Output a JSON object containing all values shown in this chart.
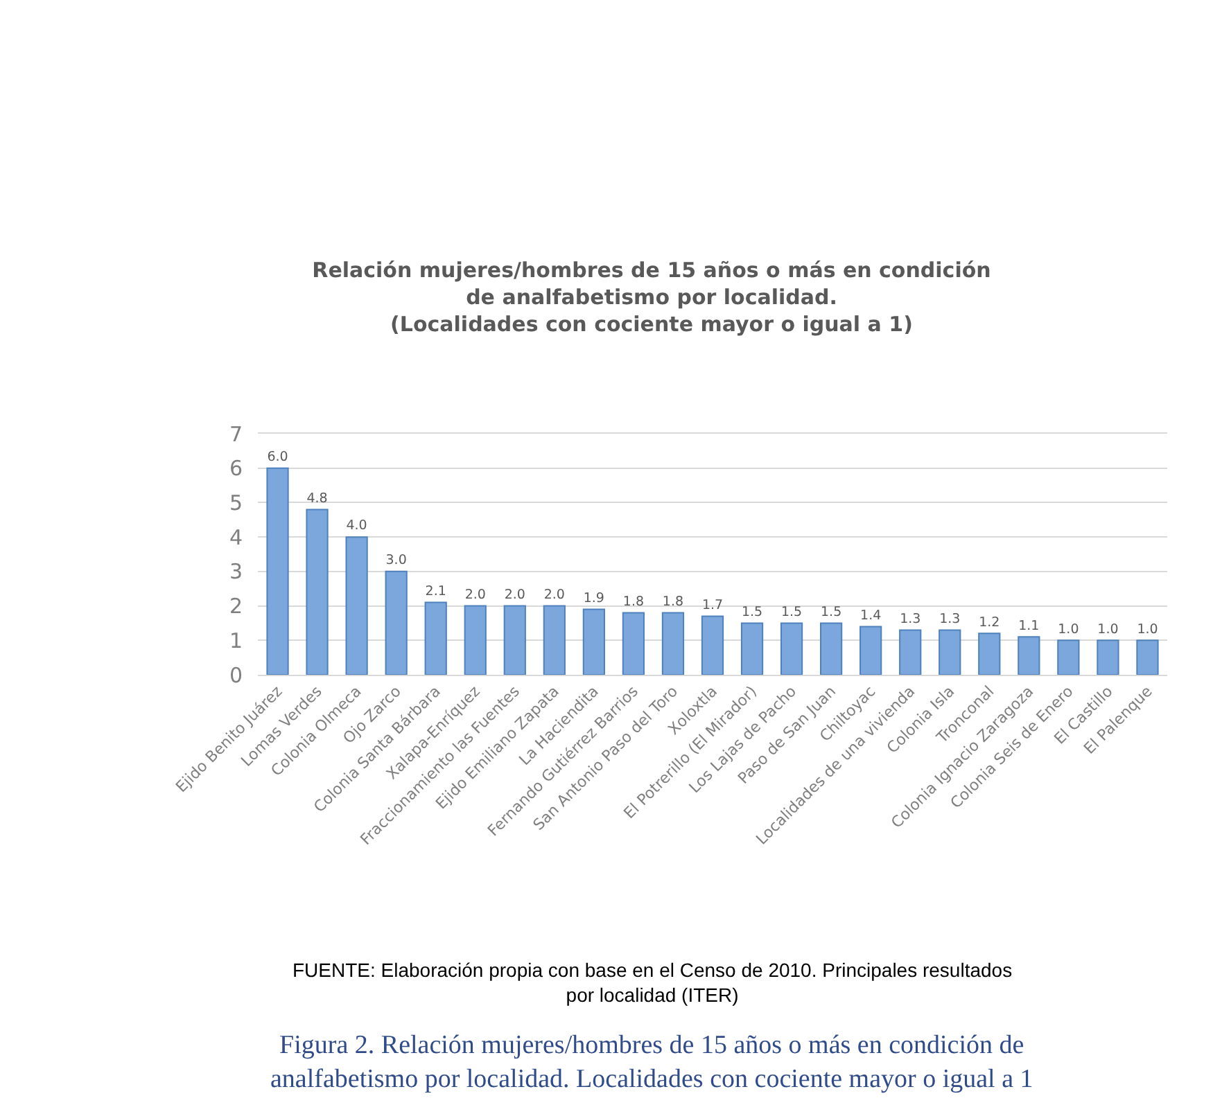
{
  "chart_data": {
    "type": "bar",
    "title": "Relación mujeres/hombres de 15 años o más en condición\nde analfabetismo por localidad.\n(Localidades con cociente mayor o igual a 1)",
    "categories": [
      "Ejido Benito Juárez",
      "Lomas Verdes",
      "Colonia Olmeca",
      "Ojo Zarco",
      "Colonia Santa Bárbara",
      "Xalapa-Enríquez",
      "Fraccionamiento las Fuentes",
      "Ejido Emiliano Zapata",
      "La Haciendita",
      "Fernando Gutiérrez Barrios",
      "San Antonio Paso del Toro",
      "Xoloxtla",
      "El Potrerillo (El Mirador)",
      "Los Lajas de Pacho",
      "Paso de San Juan",
      "Chiltoyac",
      "Localidades de una vivienda",
      "Colonia Isla",
      "Tronconal",
      "Colonia Ignacio Zaragoza",
      "Colonia Seis de Enero",
      "El Castillo",
      "El Palenque"
    ],
    "values": [
      6.0,
      4.8,
      4.0,
      3.0,
      2.1,
      2.0,
      2.0,
      2.0,
      1.9,
      1.8,
      1.8,
      1.7,
      1.5,
      1.5,
      1.5,
      1.4,
      1.3,
      1.3,
      1.2,
      1.1,
      1.0,
      1.0,
      1.0
    ],
    "value_labels": [
      "6.0",
      "4.8",
      "4.0",
      "3.0",
      "2.1",
      "2.0",
      "2.0",
      "2.0",
      "1.9",
      "1.8",
      "1.8",
      "1.7",
      "1.5",
      "1.5",
      "1.5",
      "1.4",
      "1.3",
      "1.3",
      "1.2",
      "1.1",
      "1.0",
      "1.0",
      "1.0"
    ],
    "color": "#7ba7dc",
    "ylim": [
      0,
      7
    ],
    "yticks": [
      0,
      1,
      2,
      3,
      4,
      5,
      6,
      7
    ],
    "grid": "y",
    "annotations": [
      "FUENTE: Elaboración propia con base en el Censo de 2010. Principales resultados\npor localidad (ITER)",
      "Figura 2. Relación mujeres/hombres de 15 años o más en condición de\nanalfabetismo por localidad. Localidades con cociente mayor o igual a 1"
    ]
  }
}
